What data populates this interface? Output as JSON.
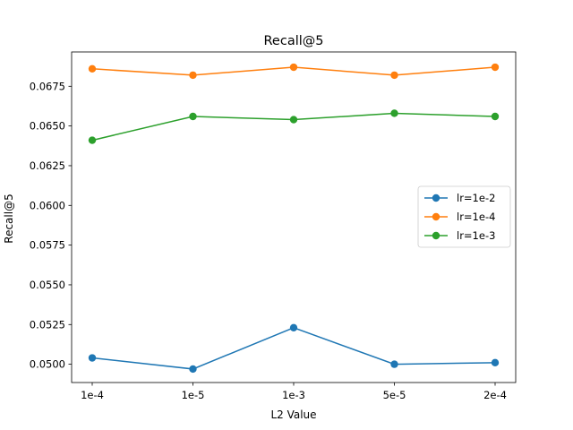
{
  "chart_data": {
    "type": "line",
    "title": "Recall@5",
    "xlabel": "L2 Value",
    "ylabel": "Recall@5",
    "categories": [
      "1e-4",
      "1e-5",
      "1e-3",
      "5e-5",
      "2e-4"
    ],
    "ylim": [
      0.04885,
      0.06966
    ],
    "yticks": [
      "0.0500",
      "0.0525",
      "0.0550",
      "0.0575",
      "0.0600",
      "0.0625",
      "0.0650",
      "0.0675"
    ],
    "grid": false,
    "legend_position": "center-right",
    "series": [
      {
        "name": "lr=1e-2",
        "color": "#1f77b4",
        "values": [
          0.0504,
          0.0497,
          0.0523,
          0.05,
          0.0501
        ]
      },
      {
        "name": "lr=1e-4",
        "color": "#ff7f0e",
        "values": [
          0.0686,
          0.0682,
          0.0687,
          0.0682,
          0.0687
        ]
      },
      {
        "name": "lr=1e-3",
        "color": "#2ca02c",
        "values": [
          0.0641,
          0.0656,
          0.0654,
          0.0658,
          0.0656
        ]
      }
    ]
  }
}
